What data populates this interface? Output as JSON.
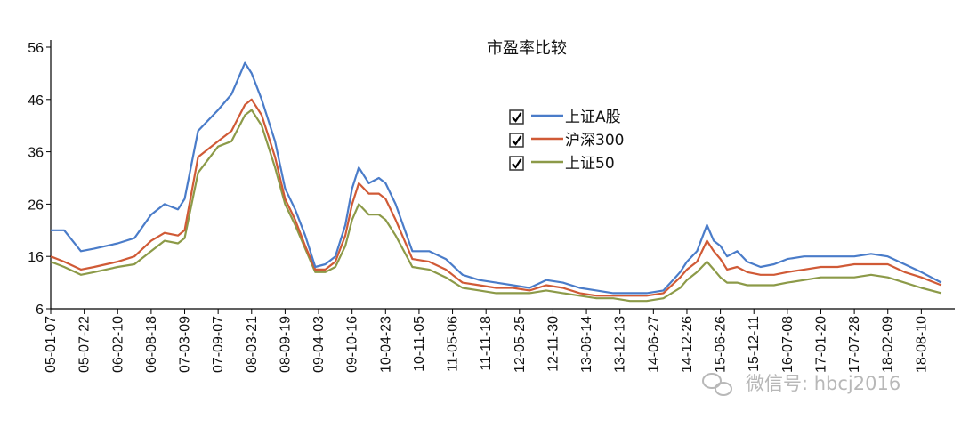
{
  "chart_data": {
    "type": "line",
    "title": "市盈率比较",
    "ylim": [
      6,
      56
    ],
    "yticks": [
      6,
      16,
      26,
      36,
      46,
      56
    ],
    "xlabels": [
      "05-01-07",
      "05-07-22",
      "06-02-10",
      "06-08-18",
      "07-03-09",
      "07-09-07",
      "08-03-21",
      "08-09-19",
      "09-04-03",
      "09-10-16",
      "10-04-23",
      "10-11-05",
      "11-05-06",
      "11-11-18",
      "12-05-25",
      "12-11-30",
      "13-06-14",
      "13-12-13",
      "14-06-27",
      "14-12-26",
      "15-06-26",
      "15-12-11",
      "16-07-08",
      "17-01-20",
      "17-07-28",
      "18-02-09",
      "18-08-10"
    ],
    "legend_position": "upper-middle",
    "colors": {
      "axis": "#000000",
      "checkbox": "#333333",
      "watermark": "#b8b8b8"
    },
    "series": [
      {
        "name": "上证A股",
        "color": "#4a7cc9",
        "x": [
          0,
          0.4,
          0.9,
          1.3,
          2,
          2.5,
          3,
          3.4,
          3.8,
          4,
          4.4,
          5,
          5.4,
          5.8,
          6,
          6.3,
          6.7,
          7,
          7.3,
          7.6,
          7.9,
          8.2,
          8.5,
          8.8,
          9,
          9.2,
          9.5,
          9.8,
          10,
          10.3,
          10.8,
          11.3,
          11.8,
          12.3,
          12.8,
          13.3,
          13.8,
          14.3,
          14.8,
          15.3,
          15.8,
          16.3,
          16.8,
          17.3,
          17.8,
          18.3,
          18.8,
          19,
          19.3,
          19.6,
          19.8,
          20,
          20.2,
          20.5,
          20.8,
          21.2,
          21.6,
          22,
          22.5,
          23,
          23.5,
          24,
          24.5,
          25,
          25.5,
          26,
          26.6
        ],
        "values": [
          21,
          21,
          17,
          17.5,
          18.5,
          19.5,
          24,
          26,
          25,
          27,
          40,
          44,
          47,
          53,
          51,
          46,
          38,
          29,
          25,
          20,
          14,
          14.5,
          16,
          22,
          29,
          33,
          30,
          31,
          30,
          26,
          17,
          17,
          15.5,
          12.5,
          11.5,
          11,
          10.5,
          10,
          11.5,
          11,
          10,
          9.5,
          9,
          9,
          9,
          9.5,
          13,
          15,
          17,
          22,
          19,
          18,
          16,
          17,
          15,
          14,
          14.5,
          15.5,
          16,
          16,
          16,
          16,
          16.5,
          16,
          14.5,
          13,
          11
        ]
      },
      {
        "name": "沪深300",
        "color": "#d05a36",
        "x": [
          0,
          0.4,
          0.9,
          1.3,
          2,
          2.5,
          3,
          3.4,
          3.8,
          4,
          4.4,
          5,
          5.4,
          5.8,
          6,
          6.3,
          6.7,
          7,
          7.3,
          7.6,
          7.9,
          8.2,
          8.5,
          8.8,
          9,
          9.2,
          9.5,
          9.8,
          10,
          10.3,
          10.8,
          11.3,
          11.8,
          12.3,
          12.8,
          13.3,
          13.8,
          14.3,
          14.8,
          15.3,
          15.8,
          16.3,
          16.8,
          17.3,
          17.8,
          18.3,
          18.8,
          19,
          19.3,
          19.6,
          19.8,
          20,
          20.2,
          20.5,
          20.8,
          21.2,
          21.6,
          22,
          22.5,
          23,
          23.5,
          24,
          24.5,
          25,
          25.5,
          26,
          26.6
        ],
        "values": [
          16,
          15,
          13.5,
          14,
          15,
          16,
          19,
          20.5,
          20,
          21,
          35,
          38,
          40,
          45,
          46,
          43,
          35,
          27,
          23,
          18,
          13.5,
          13.5,
          15,
          20,
          26,
          30,
          28,
          28,
          27,
          23,
          15.5,
          15,
          13.5,
          11,
          10.5,
          10,
          10,
          9.5,
          10.5,
          10,
          9,
          8.5,
          8.5,
          8.5,
          8.5,
          9,
          12,
          13.5,
          15,
          19,
          17,
          15.5,
          13.5,
          14,
          13,
          12.5,
          12.5,
          13,
          13.5,
          14,
          14,
          14.5,
          14.5,
          14.5,
          13,
          12,
          10.5
        ]
      },
      {
        "name": "上证50",
        "color": "#8c9a48",
        "x": [
          0,
          0.4,
          0.9,
          1.3,
          2,
          2.5,
          3,
          3.4,
          3.8,
          4,
          4.4,
          5,
          5.4,
          5.8,
          6,
          6.3,
          6.7,
          7,
          7.3,
          7.6,
          7.9,
          8.2,
          8.5,
          8.8,
          9,
          9.2,
          9.5,
          9.8,
          10,
          10.3,
          10.8,
          11.3,
          11.8,
          12.3,
          12.8,
          13.3,
          13.8,
          14.3,
          14.8,
          15.3,
          15.8,
          16.3,
          16.8,
          17.3,
          17.8,
          18.3,
          18.8,
          19,
          19.3,
          19.6,
          19.8,
          20,
          20.2,
          20.5,
          20.8,
          21.2,
          21.6,
          22,
          22.5,
          23,
          23.5,
          24,
          24.5,
          25,
          25.5,
          26,
          26.6
        ],
        "values": [
          15,
          14,
          12.5,
          13,
          14,
          14.5,
          17,
          19,
          18.5,
          19.5,
          32,
          37,
          38,
          43,
          44,
          41,
          33,
          26,
          22,
          17.5,
          13,
          13,
          14,
          18,
          23,
          26,
          24,
          24,
          23,
          20,
          14,
          13.5,
          12,
          10,
          9.5,
          9,
          9,
          9,
          9.5,
          9,
          8.5,
          8,
          8,
          7.5,
          7.5,
          8,
          10,
          11.5,
          13,
          15,
          13.5,
          12,
          11,
          11,
          10.5,
          10.5,
          10.5,
          11,
          11.5,
          12,
          12,
          12,
          12.5,
          12,
          11,
          10,
          9
        ]
      }
    ]
  },
  "watermark": {
    "text": "微信号: hbcj2016"
  }
}
